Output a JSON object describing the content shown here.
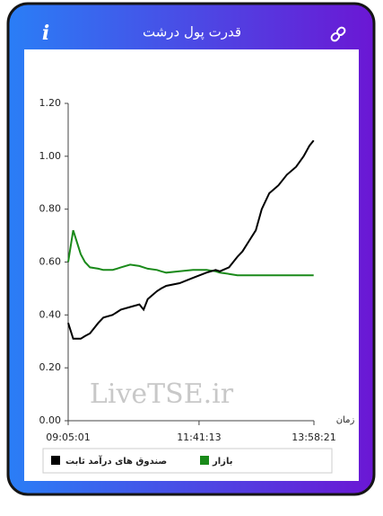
{
  "chart_data": {
    "type": "line",
    "title": "قدرت پول درشت",
    "x_label": "زمان",
    "watermark": "LiveTSE.ir",
    "x": [
      "09:05",
      "09:11",
      "09:20",
      "09:25",
      "09:31",
      "09:41",
      "09:47",
      "09:58",
      "10:03",
      "10:08",
      "10:19",
      "10:30",
      "10:35",
      "10:40",
      "10:51",
      "10:56",
      "11:02",
      "11:18",
      "11:34",
      "11:50",
      "12:01",
      "12:06",
      "12:17",
      "12:27",
      "12:33",
      "12:41",
      "12:49",
      "12:56",
      "13:05",
      "13:16",
      "13:26",
      "13:37",
      "13:46",
      "13:53",
      "13:58"
    ],
    "series": [
      {
        "name": "بازار",
        "color": "#1a8a1a",
        "values": [
          0.6,
          0.72,
          0.63,
          0.6,
          0.58,
          0.575,
          0.57,
          0.57,
          0.575,
          0.58,
          0.59,
          0.585,
          0.58,
          0.575,
          0.57,
          0.565,
          0.56,
          0.565,
          0.57,
          0.57,
          0.565,
          0.56,
          0.555,
          0.55,
          0.55,
          0.55,
          0.55,
          0.55,
          0.55,
          0.55,
          0.55,
          0.55,
          0.55,
          0.55,
          0.55
        ]
      },
      {
        "name": "صندوق های درآمد ثابت",
        "color": "#000000",
        "values": [
          0.37,
          0.31,
          0.31,
          0.32,
          0.33,
          0.37,
          0.39,
          0.4,
          0.41,
          0.42,
          0.43,
          0.44,
          0.42,
          0.46,
          0.49,
          0.5,
          0.51,
          0.52,
          0.54,
          0.56,
          0.57,
          0.565,
          0.58,
          0.62,
          0.64,
          0.68,
          0.72,
          0.8,
          0.86,
          0.89,
          0.93,
          0.96,
          1.0,
          1.04,
          1.06
        ]
      }
    ],
    "xlim": [
      "09:05:01",
      "13:58:21"
    ],
    "xticks": [
      "09:05:01",
      "11:41:13",
      "13:58:21"
    ],
    "ylim": [
      0,
      1.2
    ],
    "yticks": [
      {
        "value": 0,
        "label": "0.00"
      },
      {
        "value": 0.2,
        "label": "0.20"
      },
      {
        "value": 0.4,
        "label": "0.40"
      },
      {
        "value": 0.6,
        "label": "0.60"
      },
      {
        "value": 0.8,
        "label": "0.80"
      },
      {
        "value": 1,
        "label": "1.00"
      },
      {
        "value": 1.2,
        "label": "1.20"
      }
    ],
    "grid": false
  }
}
